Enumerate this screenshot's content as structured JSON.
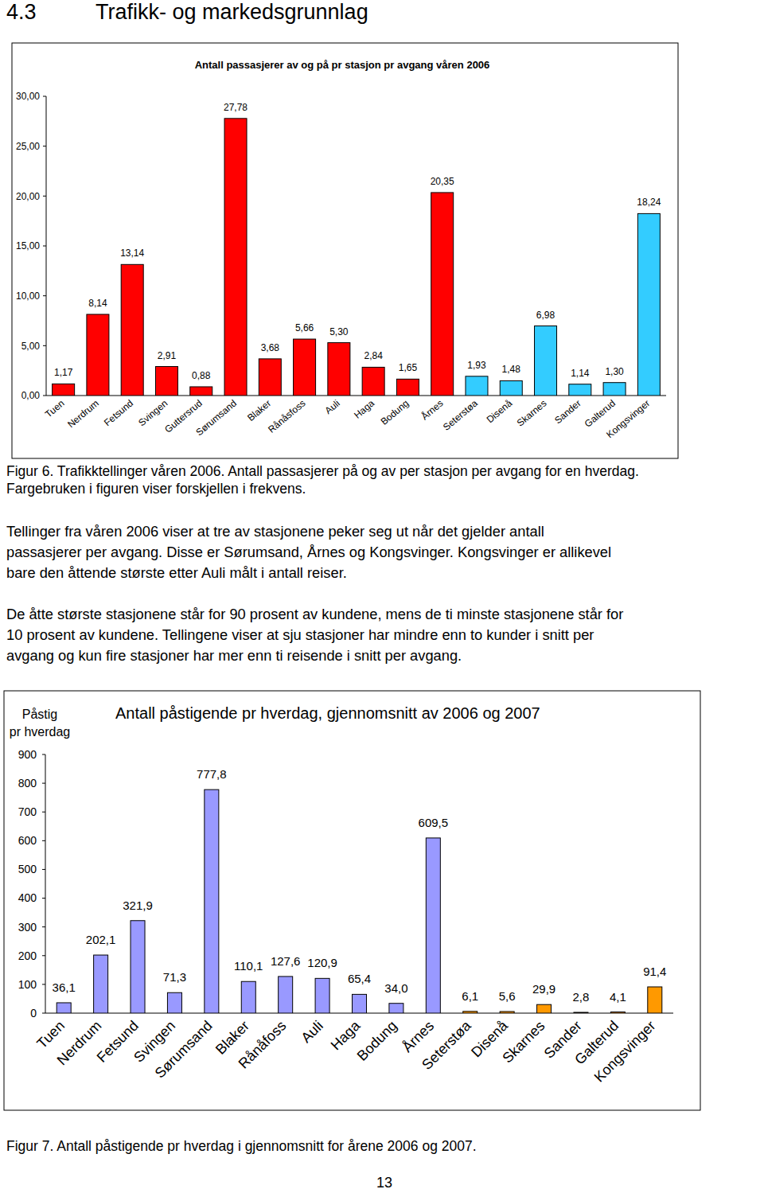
{
  "heading": {
    "number": "4.3",
    "title": "Trafikk- og markedsgrunnlag"
  },
  "chart_data": [
    {
      "type": "bar",
      "title": "Antall passasjerer av og på pr stasjon pr avgang våren 2006",
      "categories": [
        "Tuen",
        "Nerdrum",
        "Fetsund",
        "Svingen",
        "Guttersrud",
        "Sørumsand",
        "Blaker",
        "Rånåsfoss",
        "Auli",
        "Haga",
        "Bodung",
        "Årnes",
        "Seterstøa",
        "Disenå",
        "Skarnes",
        "Sander",
        "Galterud",
        "Kongsvinger"
      ],
      "values": [
        1.17,
        8.14,
        13.14,
        2.91,
        0.88,
        27.78,
        3.68,
        5.66,
        5.3,
        2.84,
        1.65,
        20.35,
        1.93,
        1.48,
        6.98,
        1.14,
        1.3,
        18.24
      ],
      "value_labels": [
        "1,17",
        "8,14",
        "13,14",
        "2,91",
        "0,88",
        "27,78",
        "3,68",
        "5,66",
        "5,30",
        "2,84",
        "1,65",
        "20,35",
        "1,93",
        "1,48",
        "6,98",
        "1,14",
        "1,30",
        "18,24"
      ],
      "colors": [
        "#ff0000",
        "#ff0000",
        "#ff0000",
        "#ff0000",
        "#ff0000",
        "#ff0000",
        "#ff0000",
        "#ff0000",
        "#ff0000",
        "#ff0000",
        "#ff0000",
        "#ff0000",
        "#33ccff",
        "#33ccff",
        "#33ccff",
        "#33ccff",
        "#33ccff",
        "#33ccff"
      ],
      "ylim": [
        0,
        30
      ],
      "yticks": [
        {
          "value": 0,
          "label": "0,00"
        },
        {
          "value": 5,
          "label": "5,00"
        },
        {
          "value": 10,
          "label": "10,00"
        },
        {
          "value": 15,
          "label": "15,00"
        },
        {
          "value": 20,
          "label": "20,00"
        },
        {
          "value": 25,
          "label": "25,00"
        },
        {
          "value": 30,
          "label": "30,00"
        }
      ],
      "grid": false,
      "data_labels": true
    },
    {
      "type": "bar",
      "title": "Antall påstigende pr hverdag, gjennomsnitt av 2006 og 2007",
      "ylabel": [
        "Påstig",
        "pr hverdag"
      ],
      "categories": [
        "Tuen",
        "Nerdrum",
        "Fetsund",
        "Svingen",
        "Sørumsand",
        "Blaker",
        "Rånåfoss",
        "Auli",
        "Haga",
        "Bodung",
        "Årnes",
        "Seterstøa",
        "Disenå",
        "Skarnes",
        "Sander",
        "Galterud",
        "Kongsvinger"
      ],
      "values": [
        36.1,
        202.1,
        321.9,
        71.3,
        777.8,
        110.1,
        127.6,
        120.9,
        65.4,
        34.0,
        609.5,
        6.1,
        5.6,
        29.9,
        2.8,
        4.1,
        91.4
      ],
      "value_labels": [
        "36,1",
        "202,1",
        "321,9",
        "71,3",
        "777,8",
        "110,1",
        "127,6",
        "120,9",
        "65,4",
        "34,0",
        "609,5",
        "6,1",
        "5,6",
        "29,9",
        "2,8",
        "4,1",
        "91,4"
      ],
      "colors": [
        "#9999ff",
        "#9999ff",
        "#9999ff",
        "#9999ff",
        "#9999ff",
        "#9999ff",
        "#9999ff",
        "#9999ff",
        "#9999ff",
        "#9999ff",
        "#9999ff",
        "#ff9900",
        "#ff9900",
        "#ff9900",
        "#ff9900",
        "#ff9900",
        "#ff9900"
      ],
      "ylim": [
        0,
        900
      ],
      "yticks": [
        0,
        100,
        200,
        300,
        400,
        500,
        600,
        700,
        800,
        900
      ],
      "grid": false,
      "data_labels": true
    }
  ],
  "captions": [
    [
      "Figur 6. Trafikktellinger våren 2006. Antall passasjerer på og av per stasjon per avgang for en hverdag.",
      "Fargebruken i figuren viser forskjellen i frekvens."
    ],
    [
      "Figur 7. Antall påstigende pr hverdag i gjennomsnitt for årene 2006 og 2007."
    ]
  ],
  "paragraphs": [
    [
      "Tellinger fra våren 2006 viser at tre av stasjonene peker seg ut når det gjelder antall",
      "passasjerer per avgang. Disse er Sørumsand, Årnes og Kongsvinger. Kongsvinger er allikevel",
      "bare den åttende største etter Auli målt i antall reiser."
    ],
    [
      "De åtte største stasjonene står for 90 prosent av kundene, mens de ti minste stasjonene står for",
      "10 prosent av kundene. Tellingene viser at sju stasjoner har mindre enn to kunder i snitt per",
      "avgang og kun fire stasjoner har mer enn ti reisende i snitt per avgang."
    ]
  ],
  "page_number": "13"
}
